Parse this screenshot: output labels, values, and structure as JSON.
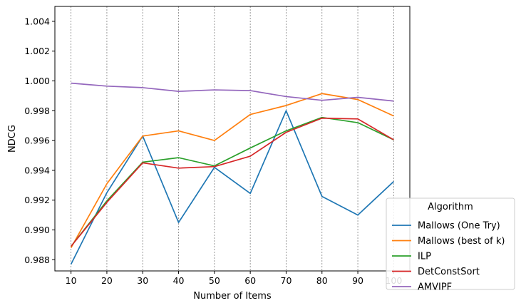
{
  "chart_data": {
    "type": "line",
    "xlabel": "Number of Items",
    "ylabel": "NDCG",
    "x": [
      10,
      20,
      30,
      40,
      50,
      60,
      70,
      80,
      90,
      100
    ],
    "xticks": [
      "10",
      "20",
      "30",
      "40",
      "50",
      "60",
      "70",
      "80",
      "90",
      "100"
    ],
    "yticks": [
      "0.988",
      "0.990",
      "0.992",
      "0.994",
      "0.996",
      "0.998",
      "1.000",
      "1.002",
      "1.004"
    ],
    "xlim": [
      5.5,
      104.5
    ],
    "ylim": [
      0.98725,
      1.005
    ],
    "vertical_grid": true,
    "horizontal_grid": false,
    "legend": {
      "title": "Algorithm",
      "placement": "bottom-right"
    },
    "series": [
      {
        "name": "Mallows (One Try)",
        "color": "#1f77b4",
        "values": [
          0.9877,
          0.9925,
          0.9963,
          0.9905,
          0.9942,
          0.99245,
          0.998,
          0.99225,
          0.991,
          0.99325
        ]
      },
      {
        "name": "Mallows (best of k)",
        "color": "#ff7f0e",
        "values": [
          0.9888,
          0.9931,
          0.9963,
          0.99665,
          0.996,
          0.99775,
          0.99835,
          0.99915,
          0.99875,
          0.99765
        ]
      },
      {
        "name": "ILP",
        "color": "#2ca02c",
        "values": [
          0.9889,
          0.99195,
          0.99455,
          0.99485,
          0.9943,
          0.9955,
          0.99665,
          0.99755,
          0.9972,
          0.99605
        ]
      },
      {
        "name": "DetConstSort",
        "color": "#d62728",
        "values": [
          0.9889,
          0.99185,
          0.9945,
          0.99415,
          0.99425,
          0.99495,
          0.99655,
          0.9975,
          0.99745,
          0.99605
        ]
      },
      {
        "name": "AMVIPF",
        "color": "#9467bd",
        "values": [
          0.99985,
          0.99965,
          0.99955,
          0.9993,
          0.9994,
          0.99935,
          0.99895,
          0.9987,
          0.9989,
          0.99865
        ]
      }
    ]
  }
}
